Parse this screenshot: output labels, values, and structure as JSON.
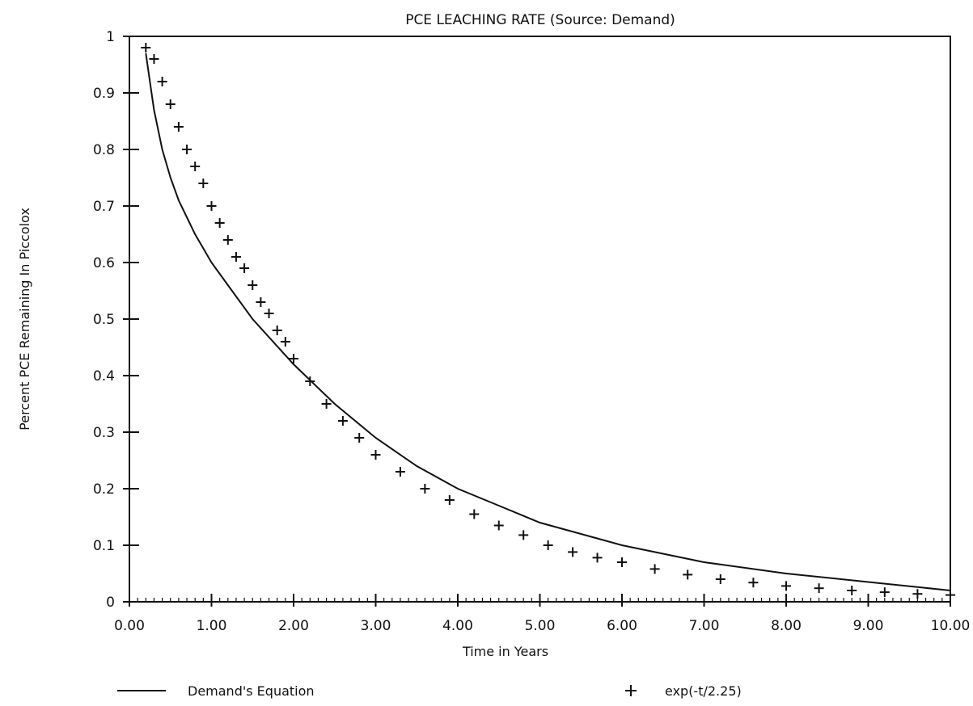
{
  "chart_data": {
    "type": "line",
    "title": "PCE LEACHING RATE (Source: Demand)",
    "xlabel": "Time in Years",
    "ylabel": "Percent PCE Remaining In Piccolox",
    "xlim": [
      0,
      10
    ],
    "ylim": [
      0,
      1
    ],
    "xticks": [
      "0.00",
      "1.00",
      "2.00",
      "3.00",
      "4.00",
      "5.00",
      "6.00",
      "7.00",
      "8.00",
      "9.00",
      "10.00"
    ],
    "yticks": [
      "0",
      "0.1",
      "0.2",
      "0.3",
      "0.4",
      "0.5",
      "0.6",
      "0.7",
      "0.8",
      "0.9",
      "1"
    ],
    "grid": false,
    "legend_position": "bottom",
    "series": [
      {
        "name": "Demand's Equation",
        "marker": "line",
        "x": [
          0.2,
          0.3,
          0.4,
          0.5,
          0.6,
          0.8,
          1.0,
          1.2,
          1.5,
          2.0,
          2.5,
          3.0,
          3.5,
          4.0,
          4.5,
          5.0,
          6.0,
          7.0,
          8.0,
          9.0,
          10.0
        ],
        "y": [
          0.97,
          0.87,
          0.8,
          0.75,
          0.71,
          0.65,
          0.6,
          0.56,
          0.5,
          0.42,
          0.35,
          0.29,
          0.24,
          0.2,
          0.17,
          0.14,
          0.1,
          0.07,
          0.05,
          0.035,
          0.02
        ]
      },
      {
        "name": "exp(-t/2.25)",
        "marker": "plus",
        "x": [
          0.2,
          0.3,
          0.4,
          0.5,
          0.6,
          0.7,
          0.8,
          0.9,
          1.0,
          1.1,
          1.2,
          1.3,
          1.4,
          1.5,
          1.6,
          1.7,
          1.8,
          1.9,
          2.0,
          2.2,
          2.4,
          2.6,
          2.8,
          3.0,
          3.3,
          3.6,
          3.9,
          4.2,
          4.5,
          4.8,
          5.1,
          5.4,
          5.7,
          6.0,
          6.4,
          6.8,
          7.2,
          7.6,
          8.0,
          8.4,
          8.8,
          9.2,
          9.6,
          10.0
        ],
        "y": [
          0.98,
          0.96,
          0.92,
          0.88,
          0.84,
          0.8,
          0.77,
          0.74,
          0.7,
          0.67,
          0.64,
          0.61,
          0.59,
          0.56,
          0.53,
          0.51,
          0.48,
          0.46,
          0.43,
          0.39,
          0.35,
          0.32,
          0.29,
          0.26,
          0.23,
          0.2,
          0.18,
          0.155,
          0.135,
          0.118,
          0.1,
          0.088,
          0.078,
          0.07,
          0.058,
          0.048,
          0.04,
          0.034,
          0.028,
          0.024,
          0.02,
          0.017,
          0.014,
          0.012
        ]
      }
    ],
    "legend": {
      "line_label": "Demand's Equation",
      "plus_label": "exp(-t/2.25)"
    }
  }
}
